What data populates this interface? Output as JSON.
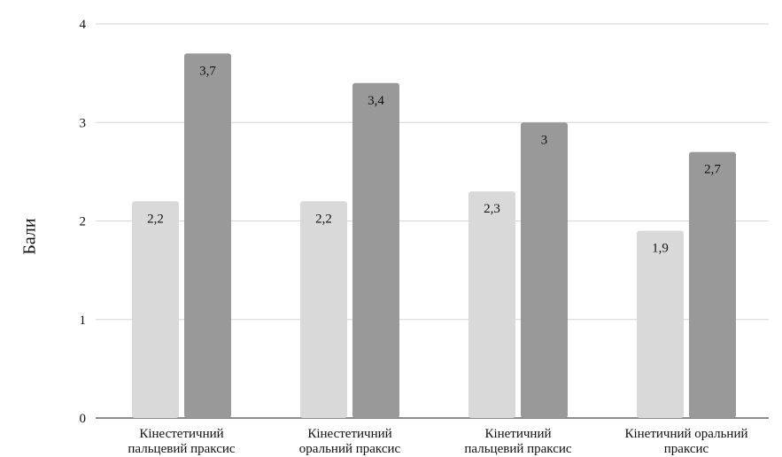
{
  "chart_data": {
    "type": "bar",
    "title": "",
    "xlabel": "",
    "ylabel": "Бали",
    "ylim": [
      0,
      4
    ],
    "yticks": [
      0,
      1,
      2,
      3,
      4
    ],
    "grid": true,
    "legend": "none",
    "categories": [
      [
        "Кінестетичний",
        "пальцевий праксис"
      ],
      [
        "Кінестетичний",
        "оральний праксис"
      ],
      [
        "Кінетичний",
        "пальцевий праксис"
      ],
      [
        "Кінетичний оральний",
        "праксис"
      ]
    ],
    "series": [
      {
        "values": [
          2.2,
          2.2,
          2.3,
          1.9
        ],
        "labels": [
          "2,2",
          "2,2",
          "2,3",
          "1,9"
        ],
        "color": "#d9d9d9"
      },
      {
        "values": [
          3.7,
          3.4,
          3.0,
          2.7
        ],
        "labels": [
          "3,7",
          "3,4",
          "3",
          "2,7"
        ],
        "color": "#999999"
      }
    ],
    "gridColor": "#d6d6d6",
    "axisColor": "#666666"
  }
}
